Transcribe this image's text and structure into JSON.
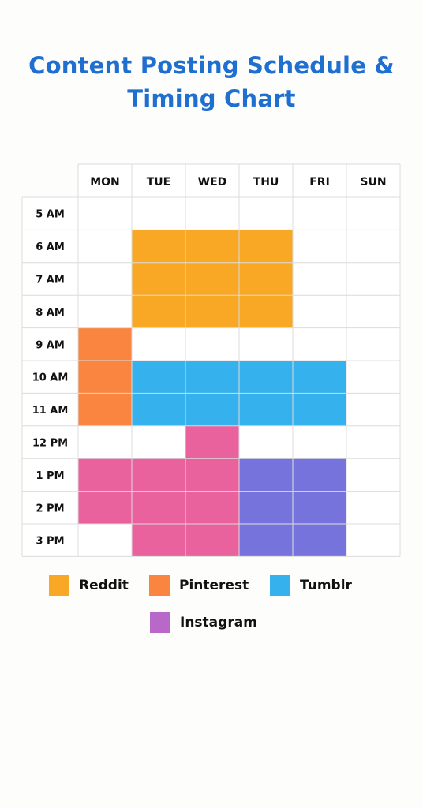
{
  "title": {
    "line1": "Content Posting Schedule &",
    "line2": "Timing Chart"
  },
  "chart_data": {
    "type": "heatmap",
    "title": "Content Posting Schedule & Timing Chart",
    "columns": [
      "MON",
      "TUE",
      "WED",
      "THU",
      "FRI",
      "SUN"
    ],
    "rows": [
      "5 AM",
      "6 AM",
      "7 AM",
      "8 AM",
      "9 AM",
      "10 AM",
      "11 AM",
      "12 PM",
      "1 PM",
      "2 PM",
      "3 PM"
    ],
    "series": [
      {
        "name": "Reddit",
        "color": "#f9a825",
        "slots": [
          [
            "TUE",
            "6 AM"
          ],
          [
            "WED",
            "6 AM"
          ],
          [
            "THU",
            "6 AM"
          ],
          [
            "TUE",
            "7 AM"
          ],
          [
            "WED",
            "7 AM"
          ],
          [
            "THU",
            "7 AM"
          ],
          [
            "TUE",
            "8 AM"
          ],
          [
            "WED",
            "8 AM"
          ],
          [
            "THU",
            "8 AM"
          ]
        ]
      },
      {
        "name": "Pinterest",
        "color": "#f98540",
        "slots": [
          [
            "MON",
            "9 AM"
          ],
          [
            "MON",
            "10 AM"
          ],
          [
            "MON",
            "11 AM"
          ]
        ]
      },
      {
        "name": "Tumblr",
        "color": "#35b1ee",
        "slots": [
          [
            "TUE",
            "10 AM"
          ],
          [
            "WED",
            "10 AM"
          ],
          [
            "THU",
            "10 AM"
          ],
          [
            "FRI",
            "10 AM"
          ],
          [
            "TUE",
            "11 AM"
          ],
          [
            "WED",
            "11 AM"
          ],
          [
            "THU",
            "11 AM"
          ],
          [
            "FRI",
            "11 AM"
          ]
        ]
      },
      {
        "name": "Instagram",
        "color": "#b868c9",
        "slots": []
      }
    ],
    "unlabeled_fills": [
      {
        "color": "#e9629e",
        "slots": [
          [
            "WED",
            "12 PM"
          ],
          [
            "MON",
            "1 PM"
          ],
          [
            "TUE",
            "1 PM"
          ],
          [
            "WED",
            "1 PM"
          ],
          [
            "MON",
            "2 PM"
          ],
          [
            "TUE",
            "2 PM"
          ],
          [
            "WED",
            "2 PM"
          ],
          [
            "TUE",
            "3 PM"
          ],
          [
            "WED",
            "3 PM"
          ]
        ]
      },
      {
        "color": "#7773dc",
        "slots": [
          [
            "THU",
            "1 PM"
          ],
          [
            "FRI",
            "1 PM"
          ],
          [
            "THU",
            "2 PM"
          ],
          [
            "FRI",
            "2 PM"
          ],
          [
            "THU",
            "3 PM"
          ],
          [
            "FRI",
            "3 PM"
          ]
        ]
      }
    ],
    "legend": [
      "Reddit",
      "Pinterest",
      "Tumblr",
      "Instagram"
    ],
    "legend_placement": "bottom",
    "grid": true
  }
}
